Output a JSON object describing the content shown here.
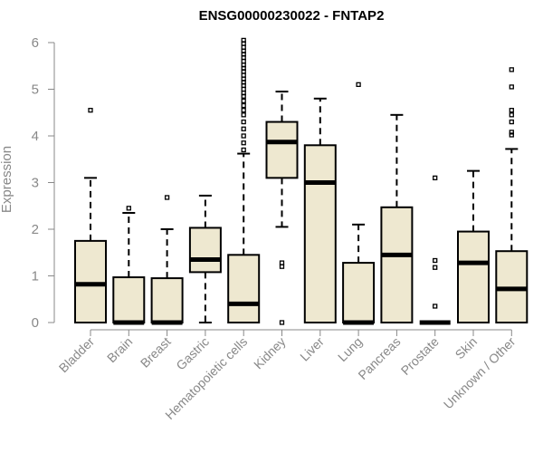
{
  "chart_data": {
    "type": "box",
    "title": "ENSG00000230022 - FNTAP2",
    "xlabel": "",
    "ylabel": "Expression",
    "ylim": [
      0,
      6
    ],
    "yticks": [
      "0",
      "1",
      "2",
      "3",
      "4",
      "5",
      "6"
    ],
    "colors": {
      "box_fill": "#EEE8D0",
      "axis": "#888888",
      "ink": "#000000"
    },
    "categories": [
      {
        "name": "Bladder",
        "q1": 0.0,
        "median": 0.82,
        "q3": 1.75,
        "whisker_low": 0.0,
        "whisker_high": 3.1,
        "outliers": [
          4.55
        ]
      },
      {
        "name": "Brain",
        "q1": 0.0,
        "median": 0.0,
        "q3": 0.97,
        "whisker_low": 0.0,
        "whisker_high": 2.35,
        "outliers": [
          2.45
        ]
      },
      {
        "name": "Breast",
        "q1": 0.0,
        "median": 0.0,
        "q3": 0.95,
        "whisker_low": 0.0,
        "whisker_high": 2.0,
        "outliers": [
          2.68
        ]
      },
      {
        "name": "Gastric",
        "q1": 1.08,
        "median": 1.35,
        "q3": 2.03,
        "whisker_low": 0.0,
        "whisker_high": 2.72,
        "outliers": []
      },
      {
        "name": "Hematopoietic cells",
        "q1": 0.0,
        "median": 0.4,
        "q3": 1.45,
        "whisker_low": 0.0,
        "whisker_high": 3.62,
        "outliers": [
          3.7,
          3.85,
          4.0,
          4.15,
          4.3,
          4.45,
          4.55,
          4.65,
          4.75,
          4.85,
          4.92,
          5.0,
          5.08,
          5.15,
          5.22,
          5.3,
          5.38,
          5.45,
          5.52,
          5.6,
          5.68,
          5.75,
          5.82,
          5.9,
          5.98,
          6.05
        ]
      },
      {
        "name": "Kidney",
        "q1": 3.1,
        "median": 3.87,
        "q3": 4.3,
        "whisker_low": 2.05,
        "whisker_high": 4.95,
        "outliers": [
          1.28,
          1.2,
          0.0
        ]
      },
      {
        "name": "Liver",
        "q1": 0.0,
        "median": 3.0,
        "q3": 3.8,
        "whisker_low": 0.0,
        "whisker_high": 4.8,
        "outliers": []
      },
      {
        "name": "Lung",
        "q1": 0.0,
        "median": 0.0,
        "q3": 1.28,
        "whisker_low": 0.0,
        "whisker_high": 2.1,
        "outliers": [
          5.1
        ]
      },
      {
        "name": "Pancreas",
        "q1": 0.0,
        "median": 1.45,
        "q3": 2.47,
        "whisker_low": 0.0,
        "whisker_high": 4.45,
        "outliers": []
      },
      {
        "name": "Prostate",
        "q1": 0.0,
        "median": 0.0,
        "q3": 0.0,
        "whisker_low": 0.0,
        "whisker_high": 0.0,
        "outliers": [
          0.35,
          1.18,
          1.33,
          3.1
        ]
      },
      {
        "name": "Skin",
        "q1": 0.0,
        "median": 1.28,
        "q3": 1.95,
        "whisker_low": 0.0,
        "whisker_high": 3.25,
        "outliers": []
      },
      {
        "name": "Unknown / Other",
        "q1": 0.0,
        "median": 0.72,
        "q3": 1.53,
        "whisker_low": 0.0,
        "whisker_high": 3.72,
        "outliers": [
          4.02,
          4.08,
          4.3,
          4.45,
          4.55,
          5.05,
          5.42
        ]
      }
    ]
  }
}
